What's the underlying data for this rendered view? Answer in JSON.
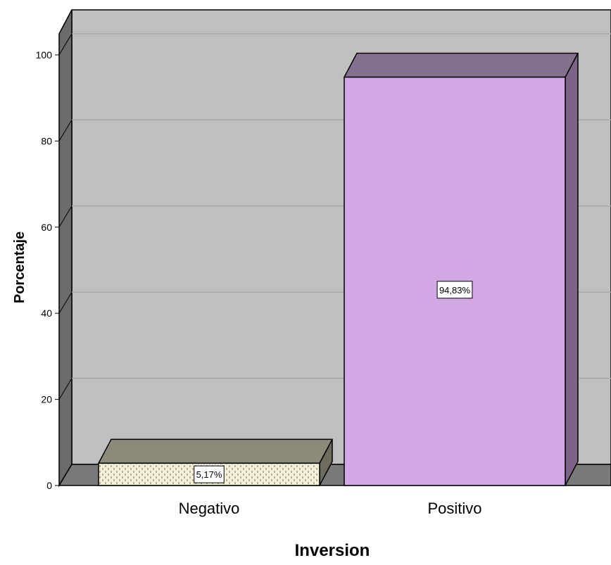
{
  "chart_data": {
    "type": "bar",
    "categories": [
      "Negativo",
      "Positivo"
    ],
    "values": [
      5.17,
      94.83
    ],
    "data_labels": [
      "5,17%",
      "94,83%"
    ],
    "xlabel": "Inversion",
    "ylabel": "Porcentaje",
    "ylim": [
      0,
      100
    ],
    "yticks": [
      "0",
      "20",
      "40",
      "60",
      "80",
      "100"
    ],
    "grid": true,
    "style": "3d",
    "colors": {
      "wall": "#c0c0c0",
      "side_wall": "#6b6b6b",
      "floor": "#7a7a7a",
      "gridline": "#a8a8a8",
      "bar_negativo_front": "#f4efd6",
      "bar_negativo_top": "#8c8a78",
      "bar_negativo_side": "#6e6c5c",
      "bar_positivo_front": "#d1a7e4",
      "bar_positivo_top": "#85708d",
      "bar_positivo_side": "#7c6488"
    }
  }
}
